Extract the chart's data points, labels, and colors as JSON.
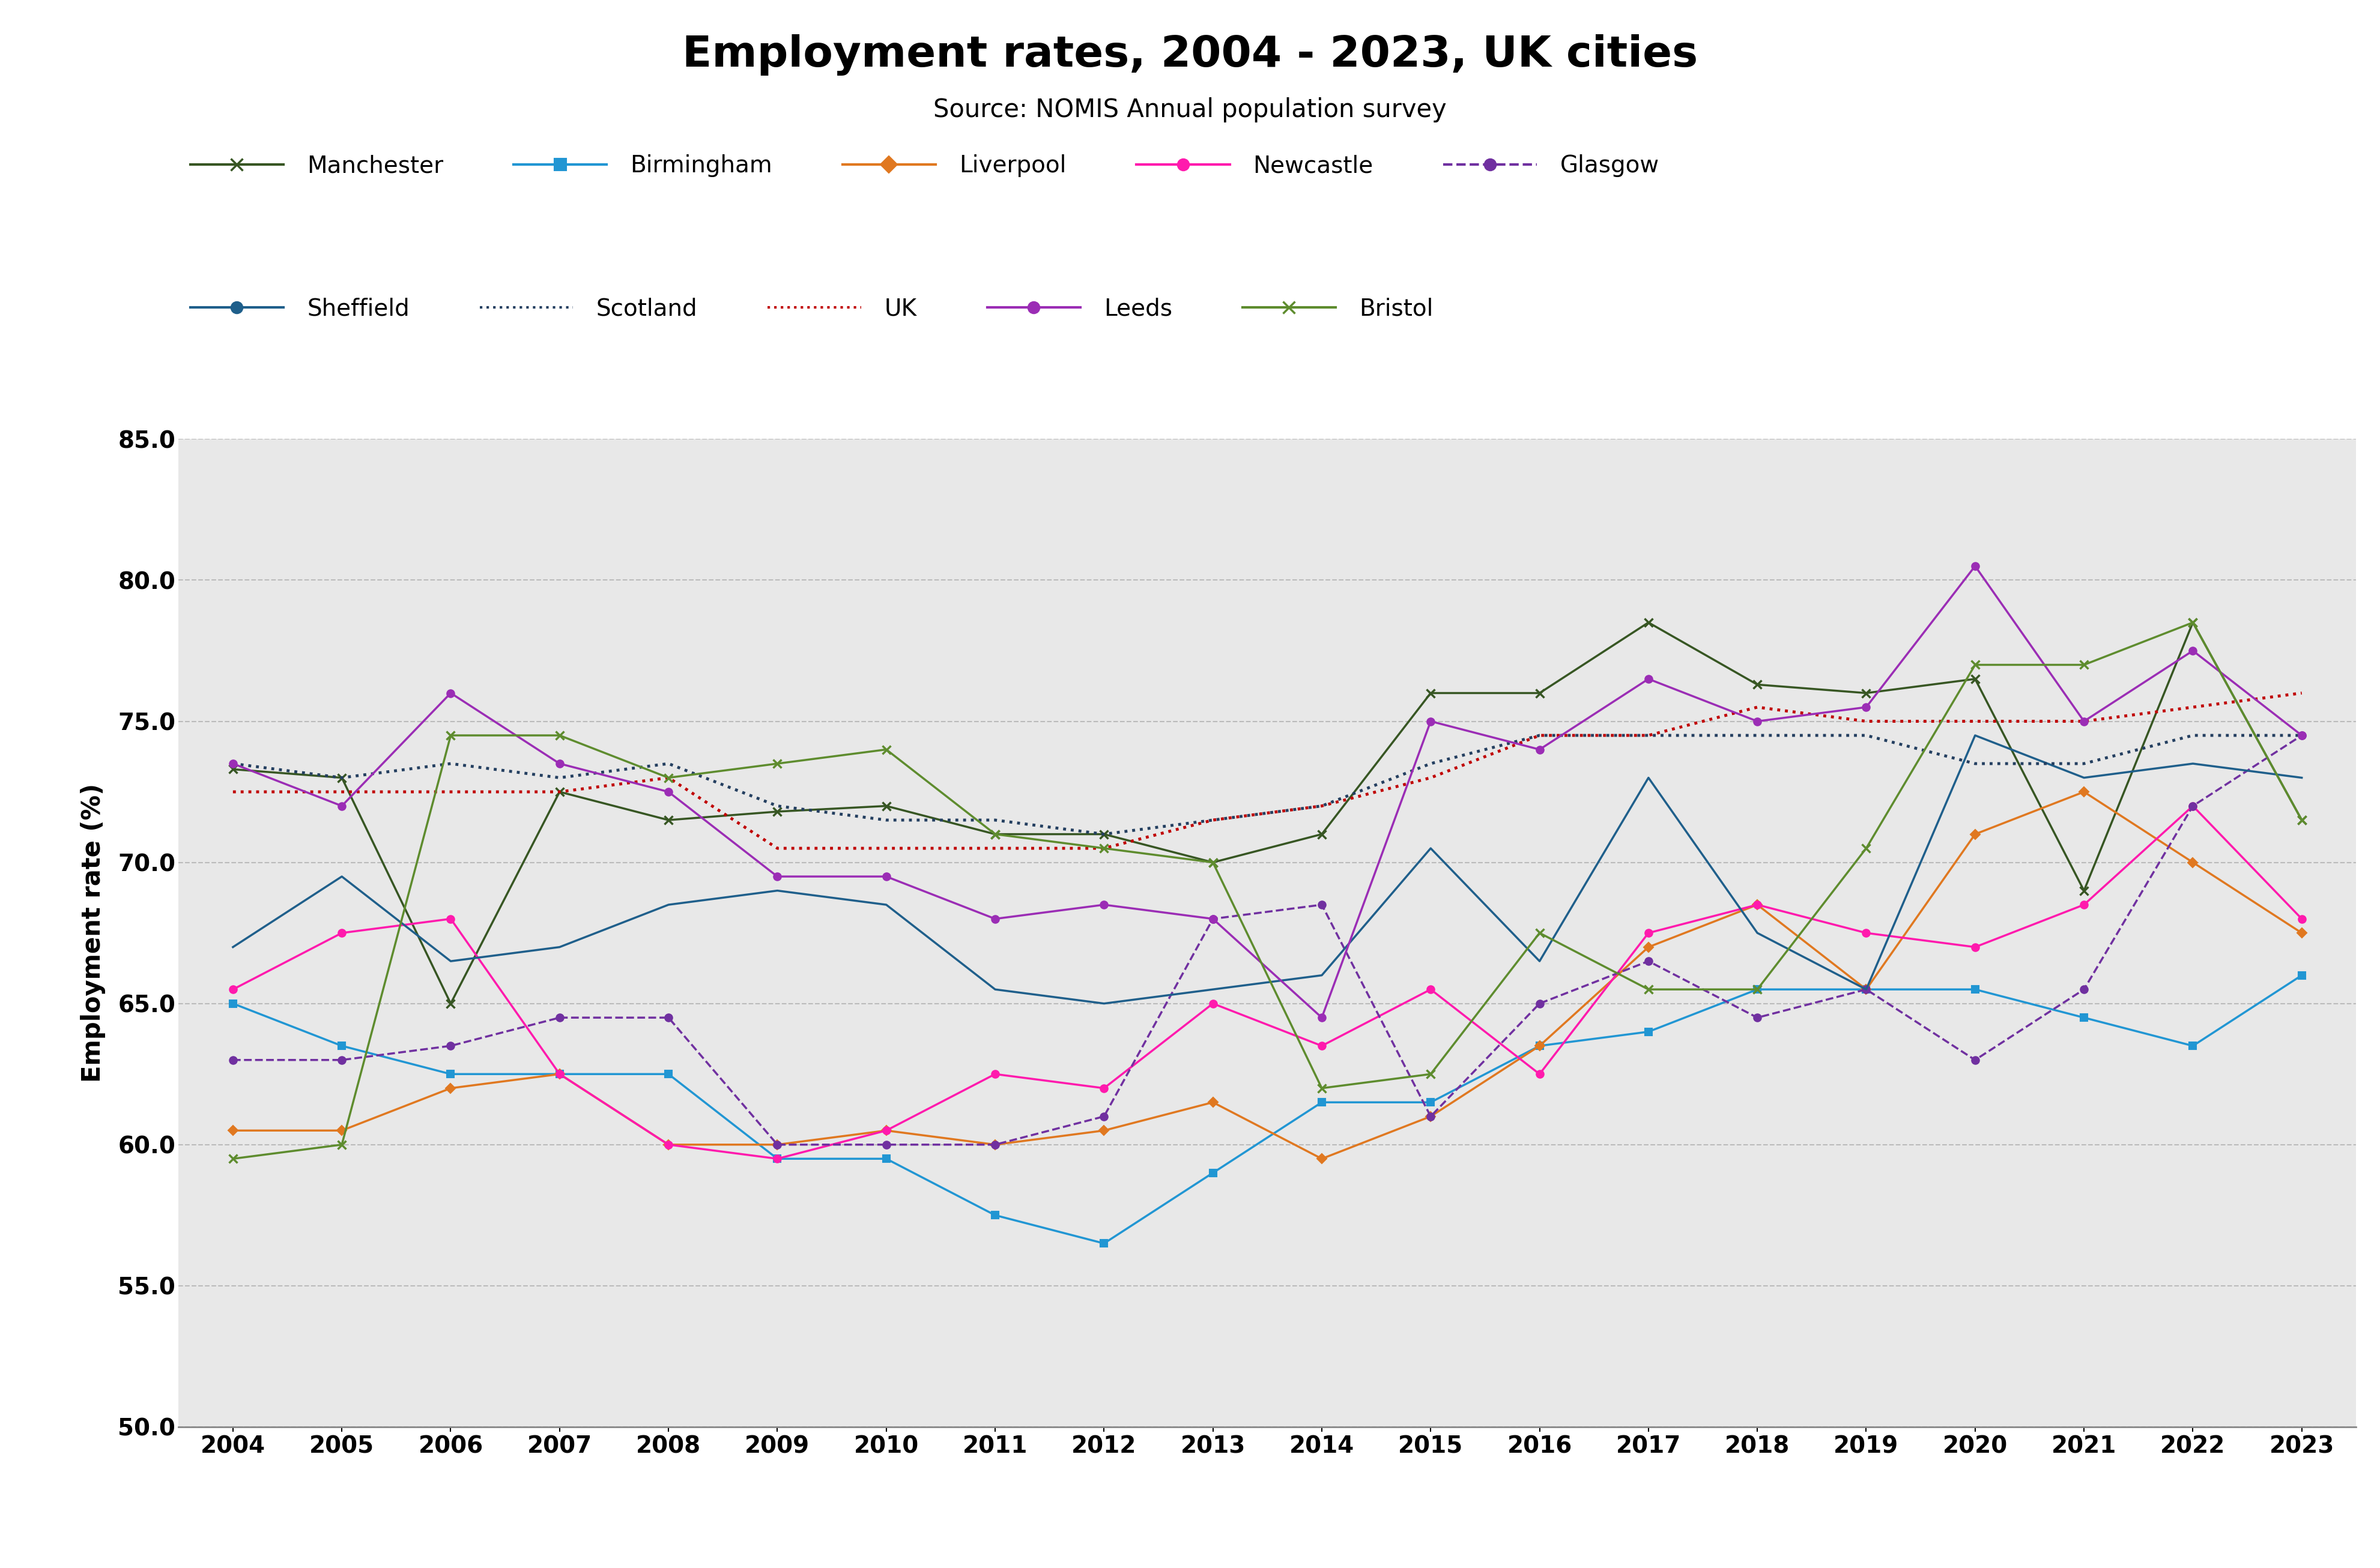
{
  "title": "Employment rates, 2004 - 2023, UK cities",
  "subtitle": "Source: NOMIS Annual population survey",
  "ylabel": "Employment rate (%)",
  "years": [
    2004,
    2005,
    2006,
    2007,
    2008,
    2009,
    2010,
    2011,
    2012,
    2013,
    2014,
    2015,
    2016,
    2017,
    2018,
    2019,
    2020,
    2021,
    2022,
    2023
  ],
  "ylim": [
    50.0,
    85.0
  ],
  "yticks": [
    50.0,
    55.0,
    60.0,
    65.0,
    70.0,
    75.0,
    80.0,
    85.0
  ],
  "series": {
    "Manchester": {
      "color": "#375623",
      "linestyle": "solid",
      "marker": "x",
      "linewidth": 2.5,
      "markersize": 10,
      "data": [
        73.3,
        73.0,
        65.0,
        72.5,
        71.5,
        71.8,
        72.0,
        71.0,
        71.0,
        70.0,
        71.0,
        76.0,
        76.0,
        78.5,
        76.3,
        76.0,
        76.5,
        69.0,
        78.5,
        71.5
      ]
    },
    "Birmingham": {
      "color": "#2196d3",
      "linestyle": "solid",
      "marker": "s",
      "linewidth": 2.5,
      "markersize": 9,
      "data": [
        65.0,
        63.5,
        62.5,
        62.5,
        62.5,
        59.5,
        59.5,
        57.5,
        56.5,
        59.0,
        61.5,
        61.5,
        63.5,
        64.0,
        65.5,
        65.5,
        65.5,
        64.5,
        63.5,
        66.0
      ]
    },
    "Liverpool": {
      "color": "#e07820",
      "linestyle": "solid",
      "marker": "D",
      "linewidth": 2.5,
      "markersize": 8,
      "data": [
        60.5,
        60.5,
        62.0,
        62.5,
        60.0,
        60.0,
        60.5,
        60.0,
        60.5,
        61.5,
        59.5,
        61.0,
        63.5,
        67.0,
        68.5,
        65.5,
        71.0,
        72.5,
        70.0,
        67.5
      ]
    },
    "Newcastle": {
      "color": "#ff1aad",
      "linestyle": "solid",
      "marker": "o",
      "linewidth": 2.5,
      "markersize": 9,
      "data": [
        65.5,
        67.5,
        68.0,
        62.5,
        60.0,
        59.5,
        60.5,
        62.5,
        62.0,
        65.0,
        63.5,
        65.5,
        62.5,
        67.5,
        68.5,
        67.5,
        67.0,
        68.5,
        72.0,
        68.0
      ]
    },
    "Glasgow": {
      "color": "#7030a0",
      "linestyle": "dashed",
      "marker": "o",
      "linewidth": 2.5,
      "markersize": 9,
      "data": [
        63.0,
        63.0,
        63.5,
        64.5,
        64.5,
        60.0,
        60.0,
        60.0,
        61.0,
        68.0,
        68.5,
        61.0,
        65.0,
        66.5,
        64.5,
        65.5,
        63.0,
        65.5,
        72.0,
        74.5
      ]
    },
    "Sheffield": {
      "color": "#1f5f8b",
      "linestyle": "solid",
      "marker": "o",
      "linewidth": 2.5,
      "markersize": 0,
      "data": [
        67.0,
        69.5,
        66.5,
        67.0,
        68.5,
        69.0,
        68.5,
        65.5,
        65.0,
        65.5,
        66.0,
        70.5,
        66.5,
        73.0,
        67.5,
        65.5,
        74.5,
        73.0,
        73.5,
        73.0
      ]
    },
    "Scotland": {
      "color": "#243f60",
      "linestyle": "dotted",
      "marker": null,
      "linewidth": 3.5,
      "markersize": 0,
      "data": [
        73.5,
        73.0,
        73.5,
        73.0,
        73.5,
        72.0,
        71.5,
        71.5,
        71.0,
        71.5,
        72.0,
        73.5,
        74.5,
        74.5,
        74.5,
        74.5,
        73.5,
        73.5,
        74.5,
        74.5
      ]
    },
    "UK": {
      "color": "#c00000",
      "linestyle": "dotted",
      "marker": null,
      "linewidth": 3.5,
      "markersize": 0,
      "data": [
        72.5,
        72.5,
        72.5,
        72.5,
        73.0,
        70.5,
        70.5,
        70.5,
        70.5,
        71.5,
        72.0,
        73.0,
        74.5,
        74.5,
        75.5,
        75.0,
        75.0,
        75.0,
        75.5,
        76.0
      ]
    },
    "Leeds": {
      "color": "#9b2db5",
      "linestyle": "solid",
      "marker": "o",
      "linewidth": 2.5,
      "markersize": 9,
      "data": [
        73.5,
        72.0,
        76.0,
        73.5,
        72.5,
        69.5,
        69.5,
        68.0,
        68.5,
        68.0,
        64.5,
        75.0,
        74.0,
        76.5,
        75.0,
        75.5,
        80.5,
        75.0,
        77.5,
        74.5
      ]
    },
    "Bristol": {
      "color": "#5e8c2e",
      "linestyle": "solid",
      "marker": "x",
      "linewidth": 2.5,
      "markersize": 10,
      "data": [
        59.5,
        60.0,
        74.5,
        74.5,
        73.0,
        73.5,
        74.0,
        71.0,
        70.5,
        70.0,
        62.0,
        62.5,
        67.5,
        65.5,
        65.5,
        70.5,
        77.0,
        77.0,
        78.5,
        71.5
      ]
    }
  },
  "background_color": "#e8e8e8",
  "plot_bg_color": "#e8e8e8",
  "outer_bg_color": "#ffffff",
  "grid_color": "#bbbbbb",
  "legend_row1": [
    "Manchester",
    "Birmingham",
    "Liverpool",
    "Newcastle",
    "Glasgow"
  ],
  "legend_row2": [
    "Sheffield",
    "Scotland",
    "UK",
    "Leeds",
    "Bristol"
  ]
}
